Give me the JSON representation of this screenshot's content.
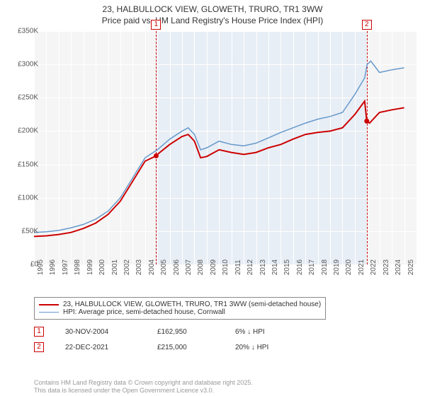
{
  "title": {
    "line1": "23, HALBULLOCK VIEW, GLOWETH, TRURO, TR1 3WW",
    "line2": "Price paid vs. HM Land Registry's House Price Index (HPI)",
    "fontsize": 12,
    "color": "#333333"
  },
  "chart": {
    "type": "line",
    "background_color": "#f5f5f5",
    "grid_color": "#ffffff",
    "shade_color": "#e8eef5",
    "xlim": [
      1995,
      2026
    ],
    "ylim": [
      0,
      350000
    ],
    "ytick_step": 50000,
    "ytick_labels": [
      "£0",
      "£50K",
      "£100K",
      "£150K",
      "£200K",
      "£250K",
      "£300K",
      "£350K"
    ],
    "xtick_step": 1,
    "xtick_labels": [
      "1995",
      "1996",
      "1997",
      "1998",
      "1999",
      "2000",
      "2001",
      "2002",
      "2003",
      "2004",
      "2005",
      "2006",
      "2007",
      "2008",
      "2009",
      "2010",
      "2011",
      "2012",
      "2013",
      "2014",
      "2015",
      "2016",
      "2017",
      "2018",
      "2019",
      "2020",
      "2021",
      "2022",
      "2023",
      "2024",
      "2025"
    ],
    "shade_ranges": [
      [
        2004.9,
        2021.97
      ]
    ],
    "series": [
      {
        "name": "property",
        "label": "23, HALBULLOCK VIEW, GLOWETH, TRURO, TR1 3WW (semi-detached house)",
        "color": "#cc0000",
        "width": 2,
        "data": [
          [
            1995,
            42000
          ],
          [
            1996,
            43000
          ],
          [
            1997,
            45000
          ],
          [
            1998,
            48000
          ],
          [
            1999,
            54000
          ],
          [
            2000,
            62000
          ],
          [
            2001,
            75000
          ],
          [
            2002,
            95000
          ],
          [
            2003,
            125000
          ],
          [
            2004,
            155000
          ],
          [
            2004.9,
            162950
          ],
          [
            2005,
            165000
          ],
          [
            2006,
            180000
          ],
          [
            2007,
            192000
          ],
          [
            2007.5,
            195000
          ],
          [
            2008,
            185000
          ],
          [
            2008.5,
            160000
          ],
          [
            2009,
            162000
          ],
          [
            2010,
            172000
          ],
          [
            2011,
            168000
          ],
          [
            2012,
            165000
          ],
          [
            2013,
            168000
          ],
          [
            2014,
            175000
          ],
          [
            2015,
            180000
          ],
          [
            2016,
            188000
          ],
          [
            2017,
            195000
          ],
          [
            2018,
            198000
          ],
          [
            2019,
            200000
          ],
          [
            2020,
            205000
          ],
          [
            2021,
            225000
          ],
          [
            2021.8,
            245000
          ],
          [
            2021.97,
            215000
          ],
          [
            2022.2,
            212000
          ],
          [
            2023,
            228000
          ],
          [
            2024,
            232000
          ],
          [
            2025,
            235000
          ]
        ]
      },
      {
        "name": "hpi",
        "label": "HPI: Average price, semi-detached house, Cornwall",
        "color": "#6699cc",
        "width": 1.5,
        "data": [
          [
            1995,
            48000
          ],
          [
            1996,
            49000
          ],
          [
            1997,
            51000
          ],
          [
            1998,
            55000
          ],
          [
            1999,
            60000
          ],
          [
            2000,
            68000
          ],
          [
            2001,
            80000
          ],
          [
            2002,
            100000
          ],
          [
            2003,
            130000
          ],
          [
            2004,
            160000
          ],
          [
            2005,
            172000
          ],
          [
            2006,
            188000
          ],
          [
            2007,
            200000
          ],
          [
            2007.5,
            205000
          ],
          [
            2008,
            195000
          ],
          [
            2008.5,
            172000
          ],
          [
            2009,
            175000
          ],
          [
            2010,
            185000
          ],
          [
            2011,
            180000
          ],
          [
            2012,
            178000
          ],
          [
            2013,
            182000
          ],
          [
            2014,
            190000
          ],
          [
            2015,
            198000
          ],
          [
            2016,
            205000
          ],
          [
            2017,
            212000
          ],
          [
            2018,
            218000
          ],
          [
            2019,
            222000
          ],
          [
            2020,
            228000
          ],
          [
            2021,
            255000
          ],
          [
            2021.8,
            280000
          ],
          [
            2022,
            300000
          ],
          [
            2022.3,
            305000
          ],
          [
            2023,
            288000
          ],
          [
            2024,
            292000
          ],
          [
            2025,
            295000
          ]
        ]
      }
    ],
    "markers": [
      {
        "id": "1",
        "x": 2004.9,
        "color": "#cc0000"
      },
      {
        "id": "2",
        "x": 2021.97,
        "color": "#cc0000"
      }
    ],
    "sale_points": [
      {
        "x": 2004.9,
        "y": 162950,
        "color": "#cc0000"
      },
      {
        "x": 2021.97,
        "y": 215000,
        "color": "#cc0000"
      }
    ]
  },
  "legend": {
    "border_color": "#888888",
    "fontsize": 10
  },
  "sales": [
    {
      "marker": "1",
      "color": "#cc0000",
      "date": "30-NOV-2004",
      "price": "£162,950",
      "delta": "6% ↓ HPI"
    },
    {
      "marker": "2",
      "color": "#cc0000",
      "date": "22-DEC-2021",
      "price": "£215,000",
      "delta": "20% ↓ HPI"
    }
  ],
  "footer": {
    "line1": "Contains HM Land Registry data © Crown copyright and database right 2025.",
    "line2": "This data is licensed under the Open Government Licence v3.0.",
    "color": "#999999",
    "fontsize": 9
  }
}
